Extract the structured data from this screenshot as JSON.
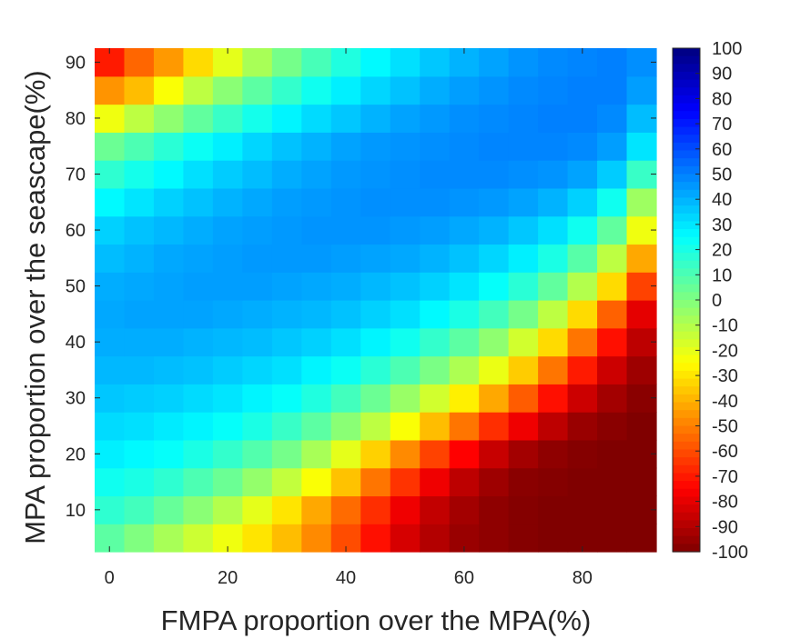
{
  "chart_data": {
    "type": "heatmap",
    "title": "",
    "xlabel": "FMPA proportion over the MPA(%)",
    "ylabel": "MPA proportion over the seascape(%)",
    "x": [
      0,
      5,
      10,
      15,
      20,
      25,
      30,
      35,
      40,
      45,
      50,
      55,
      60,
      65,
      70,
      75,
      80,
      85,
      90
    ],
    "y": [
      5,
      10,
      15,
      20,
      25,
      30,
      35,
      40,
      45,
      50,
      55,
      60,
      65,
      70,
      75,
      80,
      85,
      90
    ],
    "xlim": [
      -2.5,
      92.5
    ],
    "ylim": [
      2.5,
      92.5
    ],
    "xticks": [
      0,
      20,
      40,
      60,
      80
    ],
    "yticks": [
      10,
      20,
      30,
      40,
      50,
      60,
      70,
      80,
      90
    ],
    "colormap": "jet",
    "clim": [
      -100,
      100
    ],
    "colorbar_ticks": [
      100,
      90,
      80,
      70,
      60,
      50,
      40,
      30,
      20,
      10,
      0,
      -10,
      -20,
      -30,
      -40,
      -50,
      -60,
      -70,
      -80,
      -90,
      -100
    ],
    "z": [
      [
        7,
        0,
        -8,
        -15,
        -22,
        -30,
        -38,
        -48,
        -60,
        -72,
        -83,
        -90,
        -95,
        -97,
        -99,
        -100,
        -100,
        -100,
        -100
      ],
      [
        16,
        12,
        5,
        -2,
        -10,
        -20,
        -30,
        -42,
        -54,
        -66,
        -78,
        -87,
        -93,
        -97,
        -99,
        -100,
        -100,
        -100,
        -100
      ],
      [
        22,
        20,
        16,
        10,
        4,
        -4,
        -13,
        -24,
        -37,
        -52,
        -65,
        -78,
        -88,
        -94,
        -98,
        -99,
        -100,
        -100,
        -100
      ],
      [
        28,
        26,
        24,
        20,
        15,
        9,
        2,
        -8,
        -20,
        -34,
        -48,
        -62,
        -75,
        -86,
        -93,
        -97,
        -99,
        -100,
        -100
      ],
      [
        32,
        31,
        29,
        27,
        24,
        20,
        14,
        7,
        -2,
        -12,
        -24,
        -38,
        -52,
        -66,
        -78,
        -88,
        -95,
        -98,
        -100
      ],
      [
        36,
        35,
        34,
        32,
        30,
        27,
        24,
        19,
        12,
        4,
        -5,
        -16,
        -28,
        -42,
        -57,
        -72,
        -85,
        -93,
        -98
      ],
      [
        39,
        39,
        38,
        37,
        35,
        33,
        31,
        27,
        23,
        17,
        10,
        1,
        -9,
        -21,
        -35,
        -52,
        -70,
        -85,
        -94
      ],
      [
        41,
        41,
        41,
        40,
        39,
        38,
        36,
        34,
        31,
        27,
        22,
        15,
        7,
        -3,
        -16,
        -32,
        -52,
        -72,
        -88
      ],
      [
        42,
        43,
        43,
        43,
        42,
        41,
        40,
        39,
        37,
        34,
        31,
        26,
        20,
        12,
        2,
        -12,
        -32,
        -56,
        -80
      ],
      [
        41,
        42,
        43,
        44,
        44,
        44,
        43,
        42,
        41,
        39,
        37,
        34,
        30,
        24,
        17,
        6,
        -10,
        -32,
        -62
      ],
      [
        38,
        40,
        42,
        43,
        44,
        45,
        45,
        45,
        44,
        43,
        42,
        40,
        37,
        33,
        28,
        20,
        8,
        -12,
        -42
      ],
      [
        34,
        37,
        39,
        41,
        43,
        44,
        45,
        46,
        46,
        46,
        45,
        44,
        42,
        40,
        36,
        31,
        22,
        6,
        -22
      ],
      [
        26,
        30,
        34,
        37,
        40,
        42,
        44,
        45,
        46,
        47,
        47,
        47,
        46,
        45,
        43,
        40,
        34,
        22,
        -6
      ],
      [
        16,
        21,
        26,
        31,
        35,
        38,
        41,
        43,
        45,
        46,
        47,
        48,
        48,
        48,
        47,
        46,
        43,
        35,
        14
      ],
      [
        4,
        10,
        17,
        23,
        28,
        33,
        37,
        40,
        43,
        45,
        46,
        47,
        48,
        49,
        49,
        49,
        48,
        44,
        30
      ],
      [
        -22,
        -12,
        -3,
        6,
        14,
        21,
        27,
        32,
        36,
        40,
        43,
        45,
        47,
        48,
        49,
        50,
        50,
        48,
        38
      ],
      [
        -46,
        -38,
        -24,
        -12,
        -2,
        7,
        15,
        22,
        28,
        33,
        37,
        41,
        44,
        46,
        48,
        49,
        50,
        50,
        44
      ],
      [
        -70,
        -55,
        -45,
        -32,
        -20,
        -8,
        2,
        11,
        19,
        26,
        31,
        36,
        40,
        43,
        46,
        48,
        49,
        50,
        47
      ]
    ]
  }
}
